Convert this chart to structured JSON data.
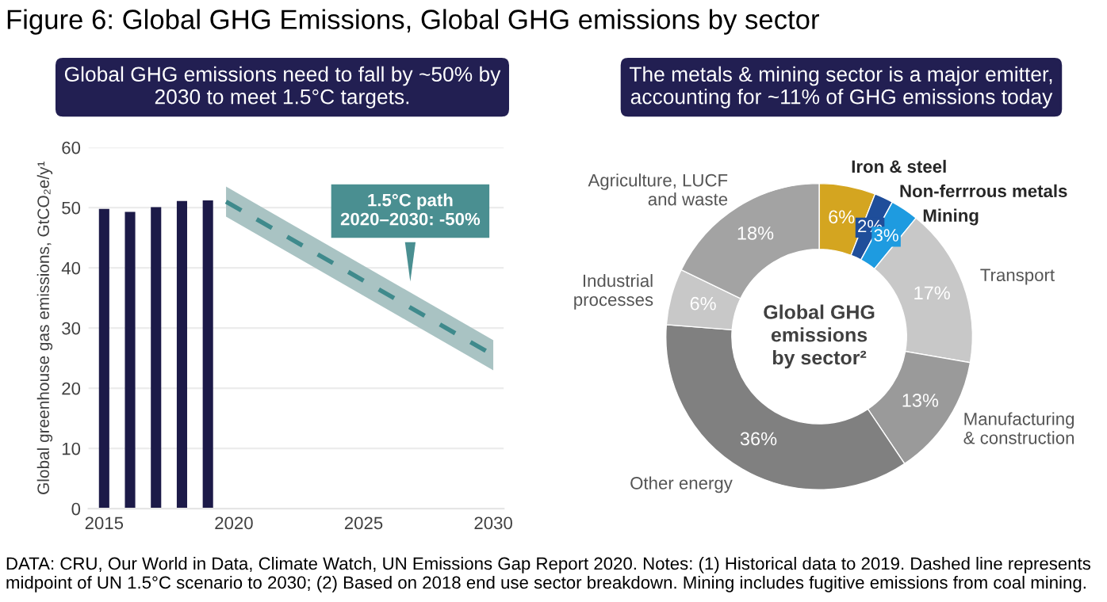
{
  "chart_data": [
    {
      "type": "bar",
      "title": "Figure 6: Global GHG Emissions, Global GHG emissions by sector",
      "subtitle": "Global GHG emissions need to fall by ~50% by\n2030 to meet 1.5°C targets.",
      "ylabel": "Global greenhouse gas emissions, GtCO₂e/y¹",
      "series": [
        {
          "type": "bar",
          "color": "#1c1a48",
          "x": [
            2015,
            2016,
            2017,
            2018,
            2019
          ],
          "values": [
            49.8,
            49.3,
            50.1,
            51.1,
            51.2
          ]
        },
        {
          "type": "line",
          "color": "#3f8a8c",
          "line_style": "dashed",
          "x": [
            2019.7,
            2030
          ],
          "values": [
            51,
            25.5
          ],
          "lower": [
            48.5,
            23
          ],
          "upper": [
            53.5,
            28
          ]
        }
      ],
      "xlim": [
        2014.4,
        2030.4
      ],
      "xticks": [
        2015,
        2020,
        2025,
        2030
      ],
      "ylim": [
        0,
        60
      ],
      "yticks": [
        0,
        10,
        20,
        30,
        40,
        50,
        60
      ],
      "grid": "y",
      "annotations": [
        {
          "text": "1.5°C path\n2020–2030: -50%",
          "x": 2026.8,
          "y": 37
        },
        "DATA: CRU, Our World in Data, Climate Watch, UN Emissions Gap Report 2020. Notes: (1) Historical data to 2019. Dashed line represents midpoint of UN 1.5°C scenario to 2030; (2) Based on 2018 end use sector breakdown. Mining includes fugitive emissions from coal mining."
      ]
    },
    {
      "type": "donut",
      "title": "The metals & mining sector is a major emitter,\naccounting for ~11% of GHG emissions today",
      "categories": [
        "Iron & steel",
        "Non-ferrrous metals",
        "Mining",
        "Transport",
        "Manufacturing\n& construction",
        "Other energy",
        "Industrial\nprocesses",
        "Agriculture, LUCF\nand waste"
      ],
      "values": [
        6,
        2,
        3,
        17,
        13,
        36,
        6,
        18
      ],
      "value_labels": [
        "6%",
        "2%",
        "3%",
        "17%",
        "13%",
        "36%",
        "6%",
        "18%"
      ],
      "colors": [
        "#d4a520",
        "#1f4e9a",
        "#1e9be0",
        "#c8c8c8",
        "#9a9a9a",
        "#808080",
        "#c8c8c8",
        "#a3a3a3"
      ],
      "annotations": [
        "Global GHG\nemissions\nby sector²"
      ]
    }
  ]
}
